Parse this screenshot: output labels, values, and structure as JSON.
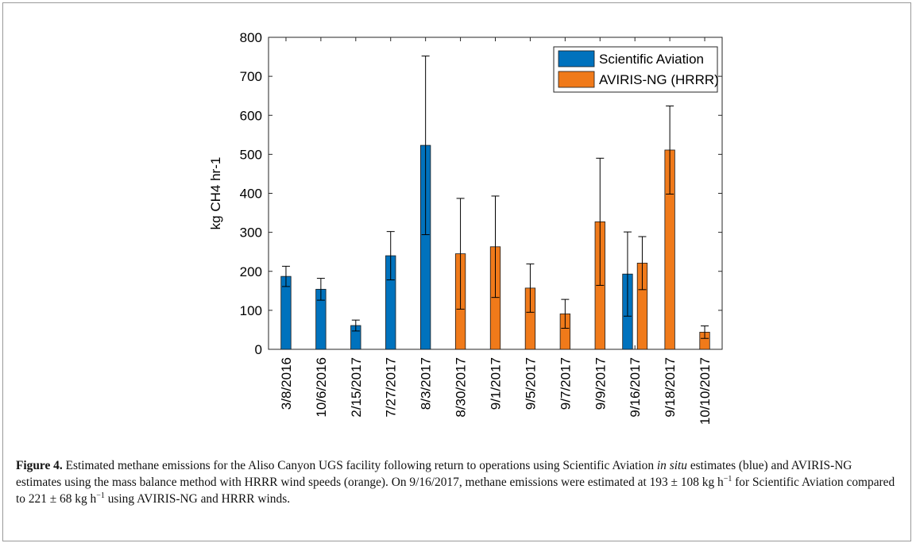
{
  "chart_data": {
    "type": "bar",
    "categories": [
      "3/8/2016",
      "10/6/2016",
      "2/15/2017",
      "7/27/2017",
      "8/3/2017",
      "8/30/2017",
      "9/1/2017",
      "9/5/2017",
      "9/7/2017",
      "9/9/2017",
      "9/16/2017",
      "9/18/2017",
      "10/10/2017"
    ],
    "ylabel": "kg CH4 hr-1",
    "ylim": [
      0,
      800
    ],
    "yticks": [
      0,
      100,
      200,
      300,
      400,
      500,
      600,
      700,
      800
    ],
    "grid": false,
    "legend_position": "top-right",
    "series": [
      {
        "name": "Scientific Aviation",
        "color": "#0072BD",
        "values": [
          187,
          154,
          61,
          240,
          523,
          null,
          null,
          null,
          null,
          null,
          193,
          null,
          null
        ],
        "errors": [
          26,
          28,
          14,
          62,
          229,
          null,
          null,
          null,
          null,
          null,
          108,
          null,
          null
        ]
      },
      {
        "name": "AVIRIS-NG (HRRR)",
        "color": "#F07A1A",
        "values": [
          null,
          null,
          null,
          null,
          null,
          245,
          263,
          157,
          91,
          327,
          221,
          511,
          44
        ],
        "errors": [
          null,
          null,
          null,
          null,
          null,
          142,
          130,
          62,
          37,
          163,
          68,
          113,
          16
        ]
      }
    ]
  },
  "caption": {
    "label": "Figure 4.",
    "text_1": " Estimated methane emissions for the Aliso Canyon UGS facility following return to operations using Scientific Aviation ",
    "insitu": "in situ",
    "text_2": " estimates (blue) and AVIRIS-NG estimates using the mass balance method with HRRR wind speeds (orange). On 9/16/2017, methane emissions were estimated at 193 ± 108 kg h",
    "sup_1": "−1",
    "text_3": " for Scientific Aviation compared to 221 ± 68 kg h",
    "sup_2": "−1",
    "text_4": " using AVIRIS-NG and HRRR winds."
  }
}
